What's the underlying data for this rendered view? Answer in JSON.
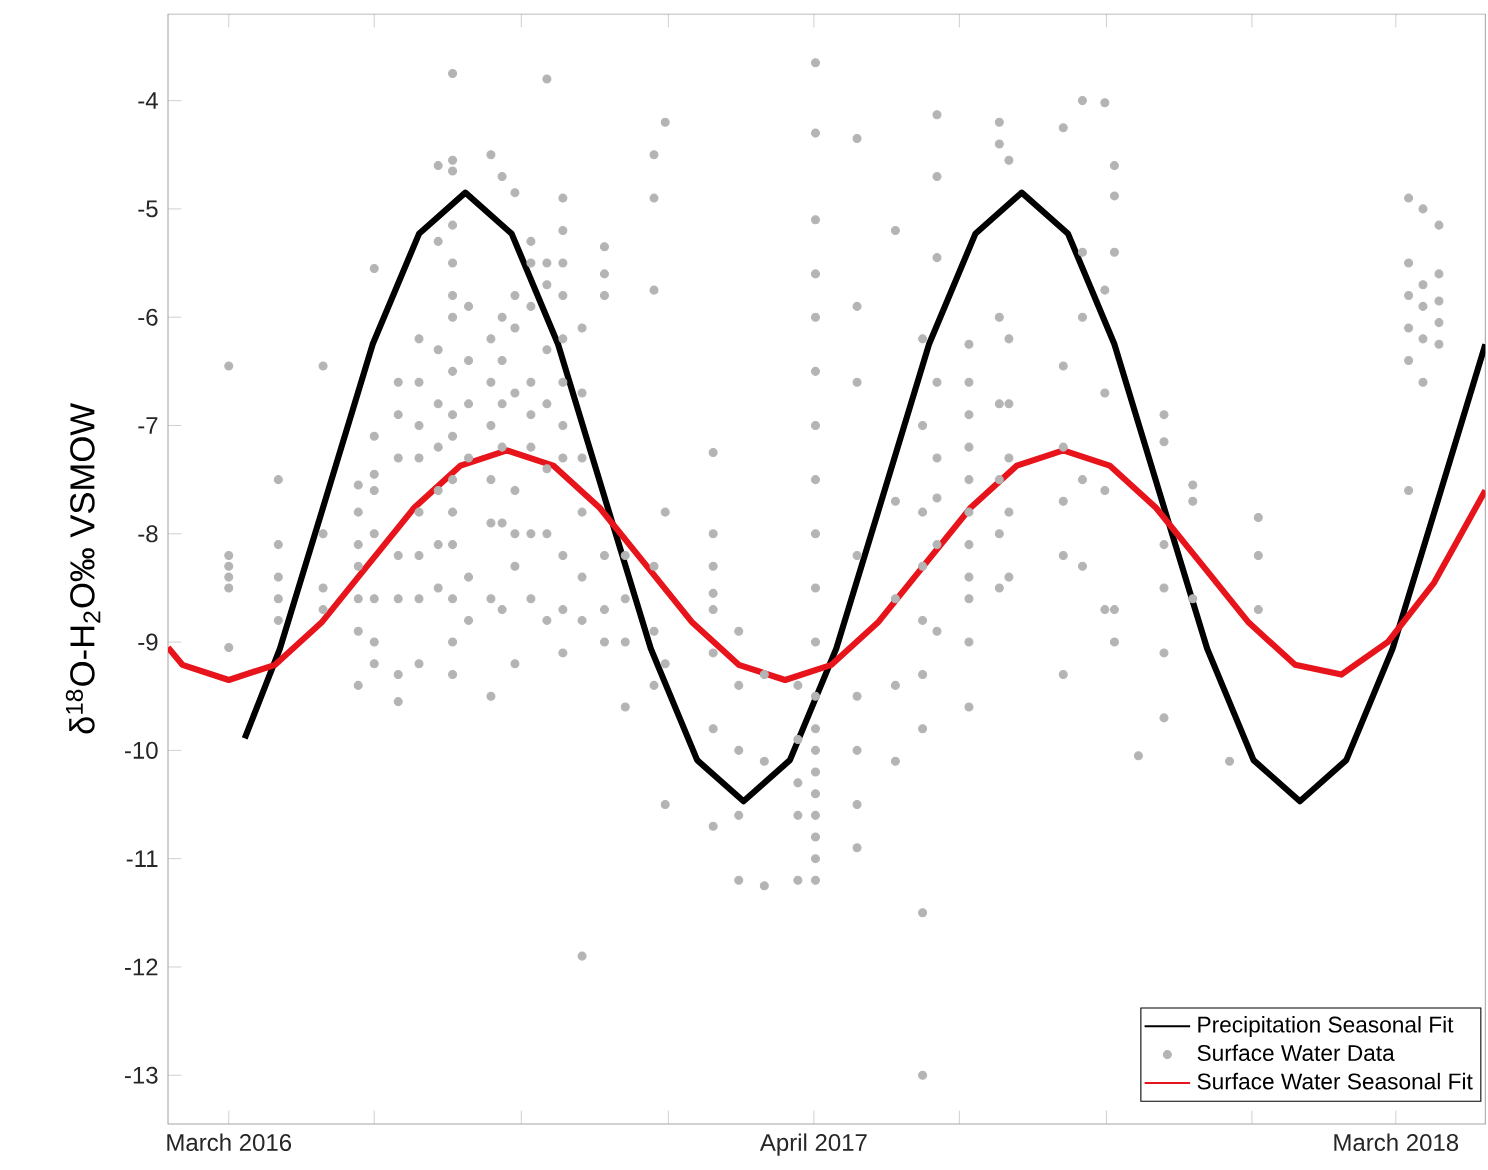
{
  "chart_data": {
    "type": "scatter",
    "ylabel": "δ$^{18}$O-H$_{2}$O‰ VSMOW",
    "xlim": [
      "2016-02-22",
      "2018-05-26"
    ],
    "ylim": [
      -13.45,
      -3.2
    ],
    "xticks": [
      {
        "value": "2016-03-31",
        "label": "March 2016"
      },
      {
        "value": "2016-06-30",
        "label": null
      },
      {
        "value": "2016-09-30",
        "label": null
      },
      {
        "value": "2016-12-31",
        "label": null
      },
      {
        "value": "2017-04-01",
        "label": "April 2017"
      },
      {
        "value": "2017-07-01",
        "label": null
      },
      {
        "value": "2017-10-01",
        "label": null
      },
      {
        "value": "2017-12-31",
        "label": null
      },
      {
        "value": "2018-03-31",
        "label": "March 2018"
      }
    ],
    "yticks": [
      -13,
      -12,
      -11,
      -10,
      -9,
      -8,
      -7,
      -6,
      -5,
      -4
    ],
    "legend": "bottom right",
    "series": [
      {
        "name": "Precipitation Seasonal Fit",
        "type": "line",
        "color": "#000000",
        "x": [
          "2016-04-10",
          "2016-05-02",
          "2016-05-31",
          "2016-06-29",
          "2016-07-28",
          "2016-08-26",
          "2016-09-24",
          "2016-10-23",
          "2016-11-21",
          "2016-12-20",
          "2017-01-18",
          "2017-02-16",
          "2017-03-17",
          "2017-04-15",
          "2017-05-14",
          "2017-06-12",
          "2017-07-11",
          "2017-08-09",
          "2017-09-07",
          "2017-10-06",
          "2017-11-04",
          "2017-12-03",
          "2018-01-01",
          "2018-01-30",
          "2018-02-28",
          "2018-03-29",
          "2018-04-27",
          "2018-05-26"
        ],
        "values": [
          -9.89,
          -9.06,
          -7.66,
          -6.25,
          -5.23,
          -4.85,
          -5.23,
          -6.25,
          -7.66,
          -9.06,
          -10.09,
          -10.47,
          -10.09,
          -9.06,
          -7.66,
          -6.25,
          -5.23,
          -4.85,
          -5.23,
          -6.25,
          -7.66,
          -9.06,
          -10.09,
          -10.47,
          -10.09,
          -9.06,
          -7.66,
          -6.25
        ]
      },
      {
        "name": "Surface Water Data",
        "marker": "circle",
        "color": "#b4b4b4",
        "x": [
          "2016-03-31",
          "2016-03-31",
          "2016-03-31",
          "2016-03-31",
          "2016-03-31",
          "2016-03-31",
          "2016-05-01",
          "2016-05-01",
          "2016-05-01",
          "2016-05-01",
          "2016-05-01",
          "2016-05-29",
          "2016-05-29",
          "2016-05-29",
          "2016-05-29",
          "2016-06-20",
          "2016-06-20",
          "2016-06-20",
          "2016-06-20",
          "2016-06-20",
          "2016-06-20",
          "2016-06-20",
          "2016-06-30",
          "2016-06-30",
          "2016-06-30",
          "2016-06-30",
          "2016-06-30",
          "2016-06-30",
          "2016-06-30",
          "2016-06-30",
          "2016-07-15",
          "2016-07-15",
          "2016-07-15",
          "2016-07-15",
          "2016-07-15",
          "2016-07-15",
          "2016-07-15",
          "2016-07-28",
          "2016-07-28",
          "2016-07-28",
          "2016-07-28",
          "2016-07-28",
          "2016-07-28",
          "2016-07-28",
          "2016-07-28",
          "2016-08-09",
          "2016-08-09",
          "2016-08-09",
          "2016-08-09",
          "2016-08-09",
          "2016-08-09",
          "2016-08-09",
          "2016-08-09",
          "2016-08-18",
          "2016-08-18",
          "2016-08-18",
          "2016-08-18",
          "2016-08-18",
          "2016-08-18",
          "2016-08-18",
          "2016-08-18",
          "2016-08-18",
          "2016-08-18",
          "2016-08-18",
          "2016-08-18",
          "2016-08-18",
          "2016-08-18",
          "2016-08-18",
          "2016-08-18",
          "2016-08-28",
          "2016-08-28",
          "2016-08-28",
          "2016-08-28",
          "2016-08-28",
          "2016-08-28",
          "2016-09-11",
          "2016-09-11",
          "2016-09-11",
          "2016-09-11",
          "2016-09-11",
          "2016-09-11",
          "2016-09-11",
          "2016-09-11",
          "2016-09-18",
          "2016-09-18",
          "2016-09-18",
          "2016-09-18",
          "2016-09-18",
          "2016-09-18",
          "2016-09-18",
          "2016-09-26",
          "2016-09-26",
          "2016-09-26",
          "2016-09-26",
          "2016-09-26",
          "2016-09-26",
          "2016-09-26",
          "2016-09-26",
          "2016-10-06",
          "2016-10-06",
          "2016-10-06",
          "2016-10-06",
          "2016-10-06",
          "2016-10-06",
          "2016-10-06",
          "2016-10-06",
          "2016-10-16",
          "2016-10-16",
          "2016-10-16",
          "2016-10-16",
          "2016-10-16",
          "2016-10-16",
          "2016-10-16",
          "2016-10-16",
          "2016-10-26",
          "2016-10-26",
          "2016-10-26",
          "2016-10-26",
          "2016-10-26",
          "2016-10-26",
          "2016-10-26",
          "2016-10-26",
          "2016-10-26",
          "2016-10-26",
          "2016-10-26",
          "2016-11-07",
          "2016-11-07",
          "2016-11-07",
          "2016-11-07",
          "2016-11-07",
          "2016-11-07",
          "2016-11-07",
          "2016-11-21",
          "2016-11-21",
          "2016-11-21",
          "2016-11-21",
          "2016-11-21",
          "2016-11-21",
          "2016-12-04",
          "2016-12-04",
          "2016-12-04",
          "2016-12-04",
          "2016-12-22",
          "2016-12-22",
          "2016-12-22",
          "2016-12-22",
          "2016-12-22",
          "2016-12-22",
          "2016-12-29",
          "2016-12-29",
          "2016-12-29",
          "2016-12-29",
          "2017-01-28",
          "2017-01-28",
          "2017-01-28",
          "2017-01-28",
          "2017-01-28",
          "2017-01-28",
          "2017-01-28",
          "2017-01-28",
          "2017-02-13",
          "2017-02-13",
          "2017-02-13",
          "2017-02-13",
          "2017-02-13",
          "2017-03-01",
          "2017-03-01",
          "2017-03-01",
          "2017-03-22",
          "2017-03-22",
          "2017-03-22",
          "2017-03-22",
          "2017-03-22",
          "2017-04-02",
          "2017-04-02",
          "2017-04-02",
          "2017-04-02",
          "2017-04-02",
          "2017-04-02",
          "2017-04-02",
          "2017-04-02",
          "2017-04-02",
          "2017-04-02",
          "2017-04-02",
          "2017-04-02",
          "2017-04-02",
          "2017-04-02",
          "2017-04-02",
          "2017-04-02",
          "2017-04-02",
          "2017-04-02",
          "2017-04-02",
          "2017-04-02",
          "2017-04-28",
          "2017-04-28",
          "2017-04-28",
          "2017-04-28",
          "2017-04-28",
          "2017-04-28",
          "2017-04-28",
          "2017-04-28",
          "2017-05-22",
          "2017-05-22",
          "2017-05-22",
          "2017-05-22",
          "2017-05-22",
          "2017-06-08",
          "2017-06-08",
          "2017-06-08",
          "2017-06-08",
          "2017-06-08",
          "2017-06-08",
          "2017-06-08",
          "2017-06-08",
          "2017-06-08",
          "2017-06-17",
          "2017-06-17",
          "2017-06-17",
          "2017-06-17",
          "2017-06-17",
          "2017-06-17",
          "2017-06-17",
          "2017-06-17",
          "2017-07-07",
          "2017-07-07",
          "2017-07-07",
          "2017-07-07",
          "2017-07-07",
          "2017-07-07",
          "2017-07-07",
          "2017-07-07",
          "2017-07-07",
          "2017-07-07",
          "2017-07-07",
          "2017-07-26",
          "2017-07-26",
          "2017-07-26",
          "2017-07-26",
          "2017-07-26",
          "2017-07-26",
          "2017-07-26",
          "2017-08-01",
          "2017-08-01",
          "2017-08-01",
          "2017-08-01",
          "2017-08-01",
          "2017-08-01",
          "2017-09-04",
          "2017-09-04",
          "2017-09-04",
          "2017-09-04",
          "2017-09-04",
          "2017-09-04",
          "2017-09-16",
          "2017-09-16",
          "2017-09-16",
          "2017-09-16",
          "2017-09-16",
          "2017-09-30",
          "2017-09-30",
          "2017-09-30",
          "2017-09-30",
          "2017-09-30",
          "2017-10-06",
          "2017-10-06",
          "2017-10-06",
          "2017-10-06",
          "2017-10-06",
          "2017-10-21",
          "2017-11-06",
          "2017-11-06",
          "2017-11-06",
          "2017-11-06",
          "2017-11-06",
          "2017-11-06",
          "2017-11-24",
          "2017-11-24",
          "2017-11-24",
          "2017-12-17",
          "2018-01-04",
          "2018-01-04",
          "2018-01-04",
          "2018-04-08",
          "2018-04-08",
          "2018-04-08",
          "2018-04-08",
          "2018-04-08",
          "2018-04-08",
          "2018-04-17",
          "2018-04-17",
          "2018-04-17",
          "2018-04-17",
          "2018-04-17",
          "2018-04-27",
          "2018-04-27",
          "2018-04-27",
          "2018-04-27",
          "2018-04-27"
        ],
        "values": [
          -6.45,
          -8.2,
          -8.3,
          -8.4,
          -8.5,
          -9.05,
          -7.5,
          -8.1,
          -8.4,
          -8.6,
          -8.8,
          -6.45,
          -8.0,
          -8.5,
          -8.7,
          -7.55,
          -7.8,
          -8.1,
          -8.3,
          -8.6,
          -8.9,
          -9.4,
          -5.55,
          -7.1,
          -7.45,
          -7.6,
          -8.0,
          -8.6,
          -9.0,
          -9.2,
          -6.6,
          -6.9,
          -7.3,
          -8.2,
          -8.6,
          -9.3,
          -9.55,
          -6.2,
          -6.6,
          -7.0,
          -7.3,
          -7.8,
          -8.2,
          -8.6,
          -9.2,
          -4.6,
          -5.3,
          -6.3,
          -6.8,
          -7.2,
          -7.6,
          -8.1,
          -8.5,
          -3.75,
          -4.55,
          -4.65,
          -5.15,
          -5.5,
          -5.8,
          -6.0,
          -6.5,
          -6.9,
          -7.1,
          -7.5,
          -7.8,
          -8.1,
          -8.6,
          -9.0,
          -9.3,
          -5.9,
          -6.4,
          -6.8,
          -7.3,
          -8.4,
          -8.8,
          -4.5,
          -6.2,
          -6.6,
          -7.0,
          -7.5,
          -7.9,
          -8.6,
          -9.5,
          -4.7,
          -6.0,
          -6.4,
          -6.8,
          -7.2,
          -7.9,
          -8.7,
          -4.85,
          -5.8,
          -6.1,
          -6.7,
          -7.6,
          -8.0,
          -8.3,
          -9.2,
          -5.3,
          -5.5,
          -5.9,
          -6.6,
          -6.9,
          -7.2,
          -8.0,
          -8.6,
          -3.8,
          -5.5,
          -5.7,
          -6.3,
          -6.8,
          -7.4,
          -8.0,
          -8.8,
          -4.9,
          -5.2,
          -5.5,
          -5.8,
          -6.2,
          -6.6,
          -7.0,
          -7.3,
          -8.2,
          -8.7,
          -9.1,
          -6.1,
          -6.7,
          -7.3,
          -7.8,
          -8.4,
          -8.8,
          -11.9,
          -5.35,
          -5.6,
          -5.8,
          -8.2,
          -8.7,
          -9.0,
          -8.2,
          -8.6,
          -9.0,
          -9.6,
          -4.5,
          -4.9,
          -5.75,
          -8.3,
          -8.9,
          -9.4,
          -4.2,
          -7.8,
          -9.2,
          -10.5,
          -7.25,
          -8.0,
          -8.3,
          -8.55,
          -8.7,
          -9.1,
          -9.8,
          -10.7,
          -8.9,
          -9.4,
          -10.0,
          -10.6,
          -11.2,
          -9.3,
          -10.1,
          -11.25,
          -9.4,
          -9.9,
          -10.3,
          -10.6,
          -11.2,
          -3.65,
          -4.3,
          -5.1,
          -5.6,
          -6.0,
          -6.5,
          -7.0,
          -7.5,
          -8.0,
          -8.5,
          -9.0,
          -9.5,
          -9.8,
          -10.0,
          -10.2,
          -10.4,
          -10.6,
          -10.8,
          -11.0,
          -11.2,
          -4.35,
          -5.9,
          -6.6,
          -8.2,
          -9.5,
          -10.0,
          -10.5,
          -10.9,
          -5.2,
          -7.7,
          -8.6,
          -9.4,
          -10.1,
          -6.2,
          -7.0,
          -7.8,
          -8.3,
          -8.8,
          -9.3,
          -9.8,
          -11.5,
          -13.0,
          -4.13,
          -4.7,
          -5.45,
          -6.6,
          -7.3,
          -7.67,
          -8.1,
          -8.9,
          -6.25,
          -6.6,
          -6.9,
          -7.2,
          -7.5,
          -7.8,
          -8.1,
          -8.4,
          -8.6,
          -9.0,
          -9.6,
          -4.2,
          -4.4,
          -6.0,
          -6.8,
          -7.5,
          -8.0,
          -8.5,
          -4.55,
          -6.2,
          -6.8,
          -7.3,
          -7.8,
          -8.4,
          -4.25,
          -6.45,
          -7.2,
          -7.7,
          -8.2,
          -9.3,
          -4.0,
          -5.4,
          -6.0,
          -7.5,
          -8.3,
          -4.02,
          -5.75,
          -6.7,
          -7.6,
          -8.7,
          -4.6,
          -4.88,
          -5.4,
          -8.7,
          -9.0,
          -10.05,
          -6.9,
          -7.15,
          -8.1,
          -8.5,
          -9.1,
          -9.7,
          -7.55,
          -7.7,
          -8.6,
          -10.1,
          -7.85,
          -8.2,
          -8.7,
          -4.9,
          -5.5,
          -5.8,
          -6.1,
          -6.4,
          -7.6,
          -5.0,
          -5.7,
          -5.9,
          -6.2,
          -6.6,
          -5.15,
          -5.6,
          -5.85,
          -6.05,
          -6.25
        ]
      },
      {
        "name": "Surface Water Seasonal Fit",
        "type": "line",
        "color": "#e8141b",
        "x": [
          "2016-02-22",
          "2016-03-02",
          "2016-03-31",
          "2016-04-29",
          "2016-05-28",
          "2016-06-26",
          "2016-07-25",
          "2016-08-23",
          "2016-09-21",
          "2016-10-20",
          "2016-11-18",
          "2016-12-17",
          "2017-01-15",
          "2017-02-13",
          "2017-03-14",
          "2017-04-12",
          "2017-05-11",
          "2017-06-09",
          "2017-07-08",
          "2017-08-06",
          "2017-09-04",
          "2017-10-03",
          "2017-11-01",
          "2017-11-30",
          "2017-12-29",
          "2018-01-27",
          "2018-02-25",
          "2018-03-26",
          "2018-04-24",
          "2018-05-26"
        ],
        "values": [
          -9.05,
          -9.21,
          -9.35,
          -9.21,
          -8.82,
          -8.29,
          -7.76,
          -7.37,
          -7.23,
          -7.37,
          -7.76,
          -8.29,
          -8.82,
          -9.21,
          -9.35,
          -9.21,
          -8.82,
          -8.29,
          -7.76,
          -7.37,
          -7.23,
          -7.37,
          -7.76,
          -8.29,
          -8.82,
          -9.21,
          -9.3,
          -9.0,
          -8.45,
          -7.6
        ]
      }
    ]
  }
}
